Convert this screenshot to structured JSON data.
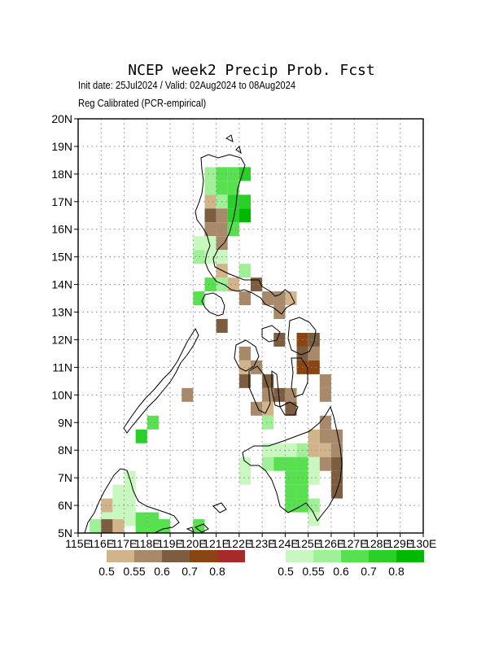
{
  "header": {
    "title": "NCEP week2 Precip Prob. Fcst",
    "subtitle_line1": "Init date: 25Jul2024 / Valid: 02Aug2024 to 08Aug2024",
    "subtitle_line2": "Reg Calibrated (PCR-empirical)"
  },
  "map": {
    "lat_labels": [
      "5N",
      "6N",
      "7N",
      "8N",
      "9N",
      "10N",
      "11N",
      "12N",
      "13N",
      "14N",
      "15N",
      "16N",
      "17N",
      "18N",
      "19N",
      "20N"
    ],
    "lon_labels": [
      "115E",
      "116E",
      "117E",
      "118E",
      "119E",
      "120E",
      "121E",
      "122E",
      "123E",
      "124E",
      "125E",
      "126E",
      "127E",
      "128E",
      "129E",
      "130E"
    ],
    "lon_range": [
      115,
      130
    ],
    "lat_range": [
      5,
      20
    ],
    "grid": "dotted",
    "cell_size_deg": 0.5
  },
  "colors": {
    "dry": [
      "#d2b48a",
      "#a88a6a",
      "#7d5d40",
      "#8b4513",
      "#a52a2a"
    ],
    "wet": [
      "#c8f8c0",
      "#a0f098",
      "#58e050",
      "#28d028",
      "#00b800"
    ]
  },
  "legend": {
    "dry_labels": [
      "0.5",
      "0.55",
      "0.6",
      "0.7",
      "0.8"
    ],
    "wet_labels": [
      "0.5",
      "0.55",
      "0.6",
      "0.7",
      "0.8"
    ]
  },
  "chart_data": {
    "type": "heatmap",
    "title": "NCEP week2 Precip Prob. Fcst",
    "value_encoding": "category dry|wet with level 1-5 (1=0.5-0.55, 2=0.55-0.6, 3=0.6-0.7, 4=0.7-0.8, 5=>0.8); lon/lat = cell center",
    "cells": [
      {
        "lon": 120.75,
        "lat": 18.0,
        "cat": "wet",
        "level": 2
      },
      {
        "lon": 121.25,
        "lat": 18.0,
        "cat": "wet",
        "level": 3
      },
      {
        "lon": 121.75,
        "lat": 18.0,
        "cat": "wet",
        "level": 3
      },
      {
        "lon": 122.25,
        "lat": 18.0,
        "cat": "wet",
        "level": 4
      },
      {
        "lon": 120.75,
        "lat": 17.5,
        "cat": "wet",
        "level": 2
      },
      {
        "lon": 121.25,
        "lat": 17.5,
        "cat": "wet",
        "level": 3
      },
      {
        "lon": 121.75,
        "lat": 17.5,
        "cat": "wet",
        "level": 3
      },
      {
        "lon": 120.75,
        "lat": 17.0,
        "cat": "dry",
        "level": 1
      },
      {
        "lon": 121.25,
        "lat": 17.0,
        "cat": "wet",
        "level": 2
      },
      {
        "lon": 121.75,
        "lat": 17.0,
        "cat": "wet",
        "level": 4
      },
      {
        "lon": 122.25,
        "lat": 17.0,
        "cat": "wet",
        "level": 4
      },
      {
        "lon": 120.75,
        "lat": 16.5,
        "cat": "dry",
        "level": 3
      },
      {
        "lon": 121.25,
        "lat": 16.5,
        "cat": "dry",
        "level": 2
      },
      {
        "lon": 121.75,
        "lat": 16.5,
        "cat": "wet",
        "level": 4
      },
      {
        "lon": 122.25,
        "lat": 16.5,
        "cat": "wet",
        "level": 5
      },
      {
        "lon": 120.75,
        "lat": 16.0,
        "cat": "dry",
        "level": 2
      },
      {
        "lon": 121.25,
        "lat": 16.0,
        "cat": "dry",
        "level": 2
      },
      {
        "lon": 121.75,
        "lat": 16.0,
        "cat": "wet",
        "level": 3
      },
      {
        "lon": 120.25,
        "lat": 15.5,
        "cat": "wet",
        "level": 1
      },
      {
        "lon": 120.75,
        "lat": 15.5,
        "cat": "wet",
        "level": 1
      },
      {
        "lon": 121.25,
        "lat": 15.5,
        "cat": "dry",
        "level": 2
      },
      {
        "lon": 120.25,
        "lat": 15.0,
        "cat": "wet",
        "level": 2
      },
      {
        "lon": 120.75,
        "lat": 15.0,
        "cat": "wet",
        "level": 1
      },
      {
        "lon": 121.25,
        "lat": 15.0,
        "cat": "wet",
        "level": 1
      },
      {
        "lon": 121.25,
        "lat": 14.5,
        "cat": "dry",
        "level": 1
      },
      {
        "lon": 122.25,
        "lat": 14.5,
        "cat": "wet",
        "level": 2
      },
      {
        "lon": 120.75,
        "lat": 14.0,
        "cat": "wet",
        "level": 3
      },
      {
        "lon": 121.25,
        "lat": 14.0,
        "cat": "wet",
        "level": 2
      },
      {
        "lon": 121.75,
        "lat": 14.0,
        "cat": "dry",
        "level": 1
      },
      {
        "lon": 122.75,
        "lat": 14.0,
        "cat": "dry",
        "level": 3
      },
      {
        "lon": 120.25,
        "lat": 13.5,
        "cat": "wet",
        "level": 3
      },
      {
        "lon": 122.25,
        "lat": 13.5,
        "cat": "dry",
        "level": 2
      },
      {
        "lon": 123.25,
        "lat": 13.5,
        "cat": "dry",
        "level": 2
      },
      {
        "lon": 123.75,
        "lat": 13.5,
        "cat": "dry",
        "level": 2
      },
      {
        "lon": 124.25,
        "lat": 13.5,
        "cat": "dry",
        "level": 1
      },
      {
        "lon": 123.75,
        "lat": 13.0,
        "cat": "dry",
        "level": 2
      },
      {
        "lon": 121.25,
        "lat": 12.5,
        "cat": "dry",
        "level": 3
      },
      {
        "lon": 123.75,
        "lat": 12.0,
        "cat": "dry",
        "level": 3
      },
      {
        "lon": 124.75,
        "lat": 12.0,
        "cat": "dry",
        "level": 4
      },
      {
        "lon": 125.25,
        "lat": 12.0,
        "cat": "dry",
        "level": 3
      },
      {
        "lon": 122.25,
        "lat": 11.5,
        "cat": "dry",
        "level": 2
      },
      {
        "lon": 124.75,
        "lat": 11.5,
        "cat": "dry",
        "level": 3
      },
      {
        "lon": 125.25,
        "lat": 11.5,
        "cat": "dry",
        "level": 2
      },
      {
        "lon": 122.25,
        "lat": 11.0,
        "cat": "dry",
        "level": 1
      },
      {
        "lon": 122.75,
        "lat": 11.0,
        "cat": "dry",
        "level": 2
      },
      {
        "lon": 124.75,
        "lat": 11.0,
        "cat": "dry",
        "level": 4
      },
      {
        "lon": 125.25,
        "lat": 11.0,
        "cat": "dry",
        "level": 4
      },
      {
        "lon": 122.25,
        "lat": 10.5,
        "cat": "dry",
        "level": 3
      },
      {
        "lon": 123.25,
        "lat": 10.5,
        "cat": "dry",
        "level": 3
      },
      {
        "lon": 125.75,
        "lat": 10.5,
        "cat": "dry",
        "level": 2
      },
      {
        "lon": 123.25,
        "lat": 10.0,
        "cat": "dry",
        "level": 2
      },
      {
        "lon": 123.75,
        "lat": 10.0,
        "cat": "dry",
        "level": 3
      },
      {
        "lon": 124.25,
        "lat": 10.0,
        "cat": "dry",
        "level": 2
      },
      {
        "lon": 125.75,
        "lat": 10.0,
        "cat": "dry",
        "level": 2
      },
      {
        "lon": 119.75,
        "lat": 10.0,
        "cat": "dry",
        "level": 2
      },
      {
        "lon": 122.75,
        "lat": 9.5,
        "cat": "dry",
        "level": 2
      },
      {
        "lon": 123.25,
        "lat": 9.5,
        "cat": "dry",
        "level": 1
      },
      {
        "lon": 124.25,
        "lat": 9.5,
        "cat": "dry",
        "level": 3
      },
      {
        "lon": 118.25,
        "lat": 9.0,
        "cat": "wet",
        "level": 3
      },
      {
        "lon": 123.25,
        "lat": 9.0,
        "cat": "wet",
        "level": 2
      },
      {
        "lon": 125.75,
        "lat": 9.0,
        "cat": "dry",
        "level": 2
      },
      {
        "lon": 117.75,
        "lat": 8.5,
        "cat": "wet",
        "level": 4
      },
      {
        "lon": 125.25,
        "lat": 8.5,
        "cat": "dry",
        "level": 1
      },
      {
        "lon": 125.75,
        "lat": 8.5,
        "cat": "dry",
        "level": 2
      },
      {
        "lon": 126.25,
        "lat": 8.5,
        "cat": "dry",
        "level": 2
      },
      {
        "lon": 123.25,
        "lat": 8.0,
        "cat": "wet",
        "level": 1
      },
      {
        "lon": 123.75,
        "lat": 8.0,
        "cat": "wet",
        "level": 1
      },
      {
        "lon": 124.25,
        "lat": 8.0,
        "cat": "wet",
        "level": 1
      },
      {
        "lon": 124.75,
        "lat": 8.0,
        "cat": "wet",
        "level": 2
      },
      {
        "lon": 125.25,
        "lat": 8.0,
        "cat": "dry",
        "level": 1
      },
      {
        "lon": 125.75,
        "lat": 8.0,
        "cat": "dry",
        "level": 1
      },
      {
        "lon": 126.25,
        "lat": 8.0,
        "cat": "dry",
        "level": 2
      },
      {
        "lon": 122.25,
        "lat": 7.5,
        "cat": "wet",
        "level": 1
      },
      {
        "lon": 123.25,
        "lat": 7.5,
        "cat": "wet",
        "level": 2
      },
      {
        "lon": 123.75,
        "lat": 7.5,
        "cat": "wet",
        "level": 3
      },
      {
        "lon": 124.25,
        "lat": 7.5,
        "cat": "wet",
        "level": 3
      },
      {
        "lon": 124.75,
        "lat": 7.5,
        "cat": "wet",
        "level": 3
      },
      {
        "lon": 125.25,
        "lat": 7.5,
        "cat": "wet",
        "level": 1
      },
      {
        "lon": 125.75,
        "lat": 7.5,
        "cat": "dry",
        "level": 2
      },
      {
        "lon": 126.25,
        "lat": 7.5,
        "cat": "dry",
        "level": 3
      },
      {
        "lon": 122.25,
        "lat": 7.0,
        "cat": "wet",
        "level": 1
      },
      {
        "lon": 124.25,
        "lat": 7.0,
        "cat": "wet",
        "level": 3
      },
      {
        "lon": 124.75,
        "lat": 7.0,
        "cat": "wet",
        "level": 3
      },
      {
        "lon": 125.25,
        "lat": 7.0,
        "cat": "wet",
        "level": 1
      },
      {
        "lon": 126.25,
        "lat": 7.0,
        "cat": "dry",
        "level": 3
      },
      {
        "lon": 124.25,
        "lat": 6.5,
        "cat": "wet",
        "level": 3
      },
      {
        "lon": 124.75,
        "lat": 6.5,
        "cat": "wet",
        "level": 3
      },
      {
        "lon": 126.25,
        "lat": 6.5,
        "cat": "dry",
        "level": 3
      },
      {
        "lon": 124.25,
        "lat": 6.0,
        "cat": "wet",
        "level": 3
      },
      {
        "lon": 124.75,
        "lat": 6.0,
        "cat": "wet",
        "level": 3
      },
      {
        "lon": 125.25,
        "lat": 6.0,
        "cat": "wet",
        "level": 2
      },
      {
        "lon": 125.25,
        "lat": 5.5,
        "cat": "wet",
        "level": 1
      },
      {
        "lon": 117.25,
        "lat": 7.0,
        "cat": "wet",
        "level": 1
      },
      {
        "lon": 116.75,
        "lat": 6.5,
        "cat": "wet",
        "level": 1
      },
      {
        "lon": 117.25,
        "lat": 6.5,
        "cat": "wet",
        "level": 1
      },
      {
        "lon": 116.25,
        "lat": 6.0,
        "cat": "dry",
        "level": 1
      },
      {
        "lon": 116.75,
        "lat": 6.0,
        "cat": "wet",
        "level": 1
      },
      {
        "lon": 117.25,
        "lat": 6.0,
        "cat": "wet",
        "level": 1
      },
      {
        "lon": 116.25,
        "lat": 5.5,
        "cat": "wet",
        "level": 1
      },
      {
        "lon": 116.75,
        "lat": 5.5,
        "cat": "wet",
        "level": 1
      },
      {
        "lon": 117.25,
        "lat": 5.5,
        "cat": "wet",
        "level": 1
      },
      {
        "lon": 117.75,
        "lat": 5.5,
        "cat": "wet",
        "level": 3
      },
      {
        "lon": 118.25,
        "lat": 5.5,
        "cat": "wet",
        "level": 3
      },
      {
        "lon": 115.75,
        "lat": 5.25,
        "cat": "wet",
        "level": 2
      },
      {
        "lon": 116.25,
        "lat": 5.25,
        "cat": "dry",
        "level": 3
      },
      {
        "lon": 116.75,
        "lat": 5.25,
        "cat": "dry",
        "level": 1
      },
      {
        "lon": 117.75,
        "lat": 5.25,
        "cat": "wet",
        "level": 3
      },
      {
        "lon": 118.25,
        "lat": 5.25,
        "cat": "wet",
        "level": 3
      },
      {
        "lon": 118.75,
        "lat": 5.25,
        "cat": "wet",
        "level": 3
      },
      {
        "lon": 120.25,
        "lat": 5.25,
        "cat": "wet",
        "level": 3
      }
    ]
  }
}
